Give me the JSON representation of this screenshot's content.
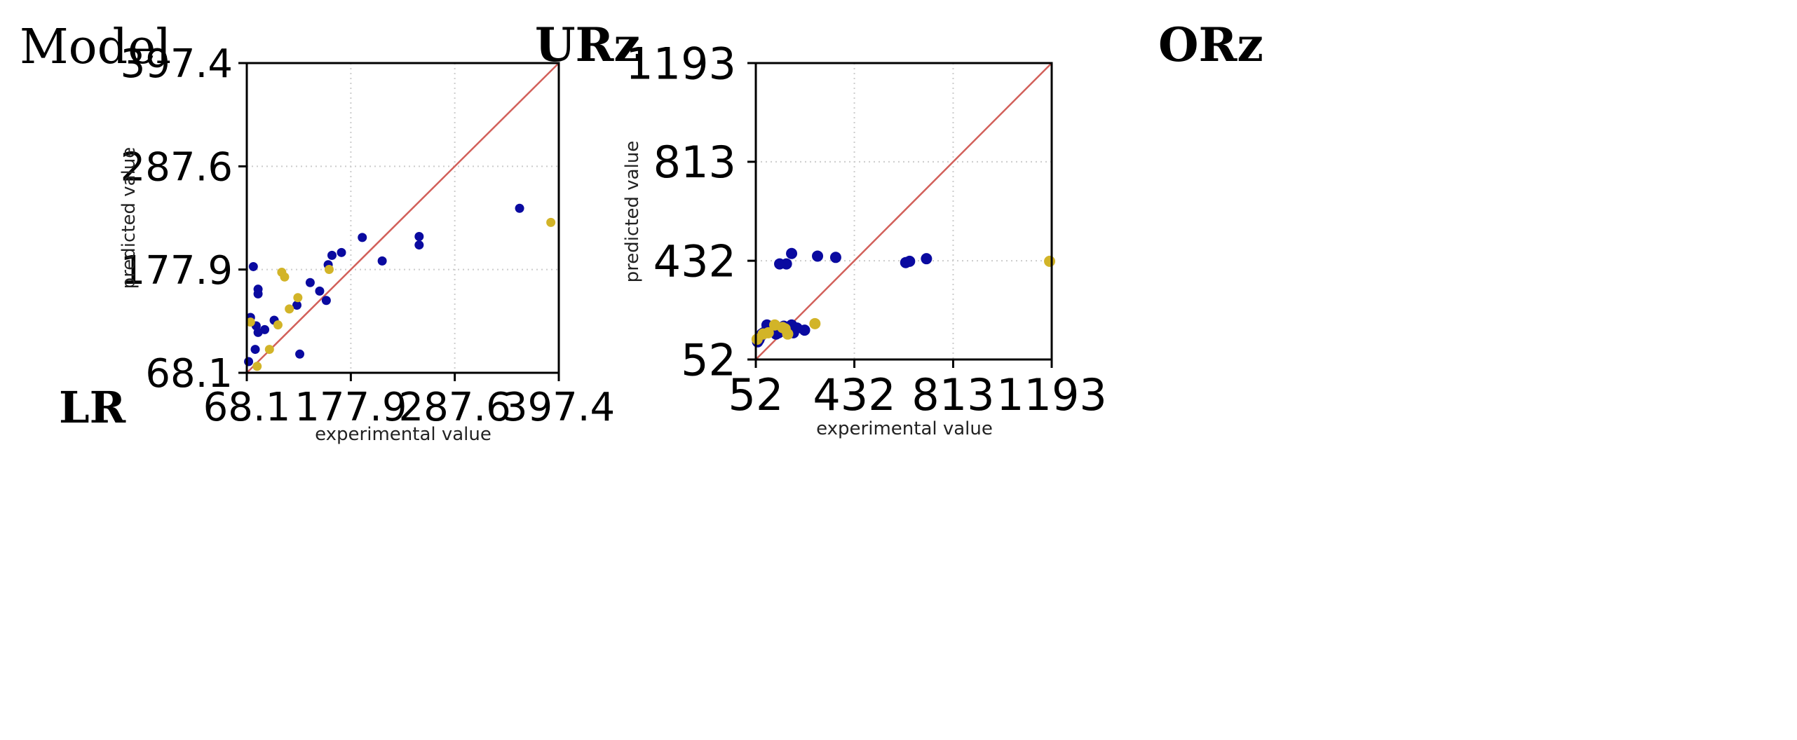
{
  "header": {
    "model_label": "Model",
    "row_label": "LR"
  },
  "colors": {
    "train": "#0a0aa0",
    "test": "#d2b428",
    "identity_line": "#d2605a",
    "grid": "#cccccc"
  },
  "chart_data": [
    {
      "type": "scatter",
      "title": "URz",
      "xlabel": "experimental value",
      "ylabel": "predicted value",
      "xlim": [
        68.1,
        397.4
      ],
      "ylim": [
        68.1,
        397.4
      ],
      "ticks": [
        68.1,
        177.9,
        287.6,
        397.4
      ],
      "tick_labels": [
        "68.1",
        "177.9",
        "287.6",
        "397.4"
      ],
      "grid": true,
      "identity_line": true,
      "series": [
        {
          "role": "train",
          "points": [
            [
              70,
              80
            ],
            [
              72,
              127
            ],
            [
              75,
              181
            ],
            [
              77,
              93
            ],
            [
              78,
              118
            ],
            [
              80,
              111
            ],
            [
              80,
              152
            ],
            [
              80,
              157
            ],
            [
              87,
              114
            ],
            [
              97,
              124
            ],
            [
              121,
              140
            ],
            [
              124,
              88
            ],
            [
              135,
              164
            ],
            [
              145,
              155
            ],
            [
              152,
              145
            ],
            [
              154,
              183
            ],
            [
              158,
              193
            ],
            [
              168,
              196
            ],
            [
              190,
              212
            ],
            [
              211,
              187
            ],
            [
              250,
              213
            ],
            [
              250,
              204
            ],
            [
              356,
              243
            ]
          ]
        },
        {
          "role": "test",
          "points": [
            [
              72,
              122
            ],
            [
              79,
              75
            ],
            [
              92,
              93
            ],
            [
              101,
              119
            ],
            [
              105,
              175
            ],
            [
              108,
              170
            ],
            [
              113,
              136
            ],
            [
              122,
              148
            ],
            [
              155,
              178
            ],
            [
              389,
              228
            ]
          ]
        }
      ]
    },
    {
      "type": "scatter",
      "title": "ORz",
      "xlabel": "experimental value",
      "ylabel": "predicted value",
      "xlim": [
        52,
        1193
      ],
      "ylim": [
        52,
        1193
      ],
      "ticks": [
        52,
        432,
        813,
        1193
      ],
      "tick_labels": [
        "52",
        "432",
        "813",
        "1193"
      ],
      "grid": true,
      "identity_line": true,
      "series": [
        {
          "role": "train",
          "points": [
            [
              59,
              120
            ],
            [
              64,
              128
            ],
            [
              70,
              140
            ],
            [
              75,
              150
            ],
            [
              82,
              155
            ],
            [
              90,
              160
            ],
            [
              95,
              185
            ],
            [
              100,
              165
            ],
            [
              110,
              170
            ],
            [
              120,
              175
            ],
            [
              130,
              150
            ],
            [
              140,
              155
            ],
            [
              150,
              165
            ],
            [
              160,
              180
            ],
            [
              175,
              160
            ],
            [
              185,
              165
            ],
            [
              190,
              185
            ],
            [
              197,
              155
            ],
            [
              205,
              172
            ],
            [
              211,
              173
            ],
            [
              240,
              165
            ],
            [
              190,
              460
            ],
            [
              144,
              420
            ],
            [
              170,
              420
            ],
            [
              290,
              450
            ],
            [
              360,
              445
            ],
            [
              630,
              425
            ],
            [
              645,
              430
            ],
            [
              710,
              440
            ]
          ]
        },
        {
          "role": "test",
          "points": [
            [
              57,
              130
            ],
            [
              80,
              150
            ],
            [
              100,
              155
            ],
            [
              125,
              185
            ],
            [
              155,
              175
            ],
            [
              165,
              170
            ],
            [
              175,
              150
            ],
            [
              280,
              190
            ],
            [
              1185,
              430
            ]
          ]
        }
      ]
    }
  ]
}
